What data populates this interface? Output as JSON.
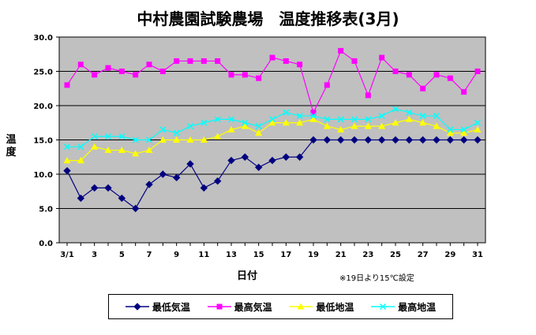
{
  "chart_data": {
    "type": "line",
    "title": "中村農園試験農場　温度推移表(3月)",
    "xlabel": "日付",
    "ylabel": "温度",
    "note": "※19日より15℃設定",
    "ylim": [
      0,
      30
    ],
    "yticks": [
      "0.0",
      "5.0",
      "10.0",
      "15.0",
      "20.0",
      "25.0",
      "30.0"
    ],
    "xtick_labels": [
      "3/1",
      "3",
      "5",
      "7",
      "9",
      "11",
      "13",
      "15",
      "17",
      "19",
      "21",
      "23",
      "25",
      "27",
      "29",
      "31"
    ],
    "x": [
      1,
      2,
      3,
      4,
      5,
      6,
      7,
      8,
      9,
      10,
      11,
      12,
      13,
      14,
      15,
      16,
      17,
      18,
      19,
      20,
      21,
      22,
      23,
      24,
      25,
      26,
      27,
      28,
      29,
      30,
      31
    ],
    "grid": true,
    "legend_position": "bottom",
    "plot_background": "#c0c0c0",
    "series": [
      {
        "name": "最低気温",
        "color": "#000080",
        "marker": "diamond",
        "values": [
          10.5,
          6.5,
          8,
          8,
          6.5,
          5,
          8.5,
          10,
          9.5,
          11.5,
          8,
          9,
          12,
          12.5,
          11,
          12,
          12.5,
          12.5,
          15,
          15,
          15,
          15,
          15,
          15,
          15,
          15,
          15,
          15,
          15,
          15,
          15
        ]
      },
      {
        "name": "最高気温",
        "color": "#ff00ff",
        "marker": "square",
        "values": [
          23,
          26,
          24.5,
          25.5,
          25,
          24.5,
          26,
          25,
          26.5,
          26.5,
          26.5,
          26.5,
          24.5,
          24.5,
          24,
          27,
          26.5,
          26,
          19,
          23,
          28,
          26.5,
          21.5,
          27,
          25,
          24.5,
          22.5,
          24.5,
          24,
          22,
          25
        ]
      },
      {
        "name": "最低地温",
        "color": "#ffff00",
        "marker": "triangle",
        "values": [
          12,
          12,
          14,
          13.5,
          13.5,
          13,
          13.5,
          15,
          15,
          15,
          15,
          15.5,
          16.5,
          17,
          16,
          17.5,
          17.5,
          17.5,
          18,
          17,
          16.5,
          17,
          17,
          17,
          17.5,
          18,
          17.5,
          17,
          16,
          16,
          16.5
        ]
      },
      {
        "name": "最高地温",
        "color": "#00ffff",
        "marker": "x",
        "values": [
          14,
          14,
          15.5,
          15.5,
          15.5,
          15,
          15,
          16.5,
          16,
          17,
          17.5,
          18,
          18,
          17.5,
          17,
          18,
          19,
          18.5,
          18.5,
          18,
          18,
          18,
          18,
          18.5,
          19.5,
          19,
          18.5,
          18.5,
          16.5,
          16.5,
          17.5
        ]
      }
    ]
  }
}
